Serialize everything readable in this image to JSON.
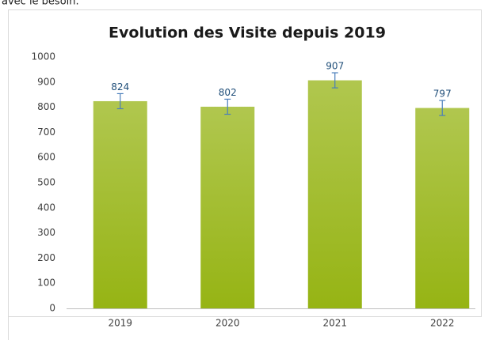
{
  "intro_text": "avec le besoin.",
  "chart_data": {
    "type": "bar",
    "title": "Evolution des Visite depuis 2019",
    "categories": [
      "2019",
      "2020",
      "2021",
      "2022"
    ],
    "values": [
      824,
      802,
      907,
      797
    ],
    "errors": [
      30,
      30,
      30,
      30
    ],
    "color": "#96b414",
    "error_color": "#4a7ebb",
    "ylim": [
      0,
      1000
    ],
    "yticks": [
      0,
      100,
      200,
      300,
      400,
      500,
      600,
      700,
      800,
      900,
      1000
    ],
    "grid": false
  }
}
